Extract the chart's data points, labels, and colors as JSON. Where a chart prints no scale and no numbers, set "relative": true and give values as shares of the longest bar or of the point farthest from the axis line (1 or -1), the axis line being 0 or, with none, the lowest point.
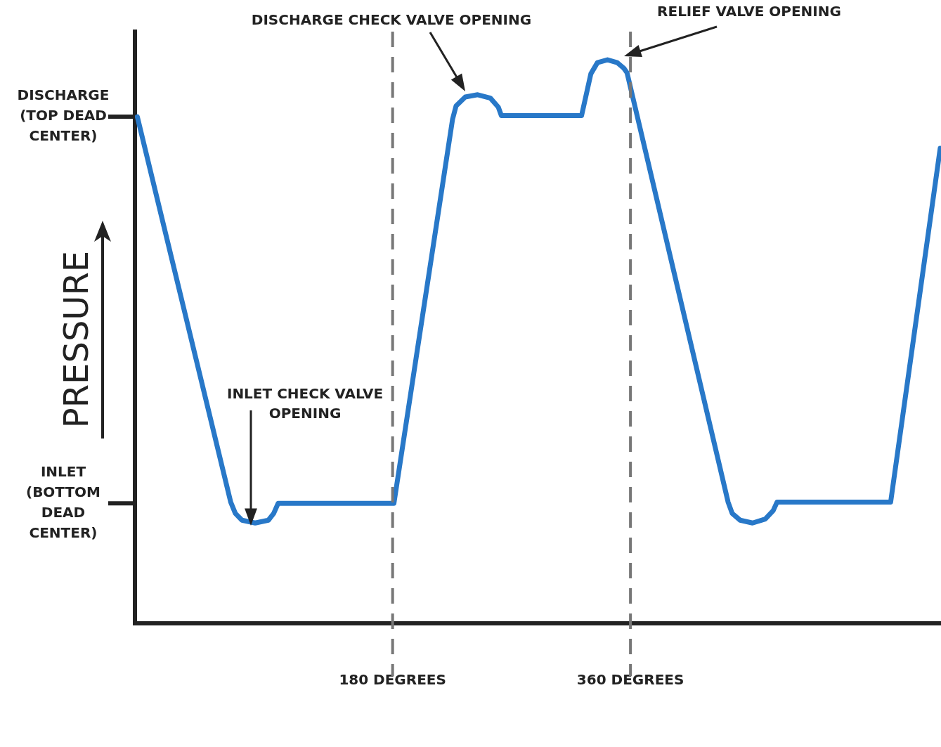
{
  "chart_data": {
    "type": "line",
    "ylabel": "PRESSURE",
    "relative": true,
    "x": [
      -13.2,
      57.5,
      61,
      66,
      76,
      86,
      90,
      93.4,
      181,
      225.4,
      228,
      235,
      244.4,
      254,
      260,
      262.3,
      323,
      330,
      335,
      342.6,
      350,
      355,
      357.4,
      433.9,
      437,
      443,
      452.4,
      462,
      468,
      470.9,
      556.9,
      594.4
    ],
    "series": [
      {
        "color": "#2878c8",
        "values": [
          0.899,
          0.215,
          0.195,
          0.183,
          0.178,
          0.183,
          0.195,
          0.213,
          0.213,
          0.895,
          0.918,
          0.934,
          0.938,
          0.932,
          0.916,
          0.901,
          0.901,
          0.975,
          0.995,
          1.0,
          0.995,
          0.985,
          0.977,
          0.215,
          0.195,
          0.183,
          0.178,
          0.185,
          0.2,
          0.215,
          0.215,
          0.843
        ]
      }
    ],
    "xlim": [
      -15,
      595
    ],
    "xticks": [
      {
        "value": 180,
        "label": "180 DEGREES"
      },
      {
        "value": 360,
        "label": "360 DEGREES"
      }
    ],
    "ref_lines": [
      {
        "axis": "x",
        "value": 180,
        "color": "#777777",
        "line_style": "dashed"
      },
      {
        "axis": "x",
        "value": 360,
        "color": "#777777",
        "line_style": "dashed"
      },
      {
        "axis": "y",
        "value": 0.899,
        "label": "DISCHARGE (TOP DEAD CENTER)",
        "color": "#222222",
        "line_style": "solid"
      },
      {
        "axis": "y",
        "value": 0.213,
        "label": "INLET (BOTTOM DEAD CENTER)",
        "color": "#222222",
        "line_style": "solid"
      }
    ],
    "annotations": [
      "DISCHARGE CHECK VALVE OPENING",
      "RELIEF VALVE OPENING",
      "INLET CHECK VALVE OPENING"
    ],
    "grid": false,
    "legend": false,
    "marker": "none",
    "line_style": "solid"
  }
}
